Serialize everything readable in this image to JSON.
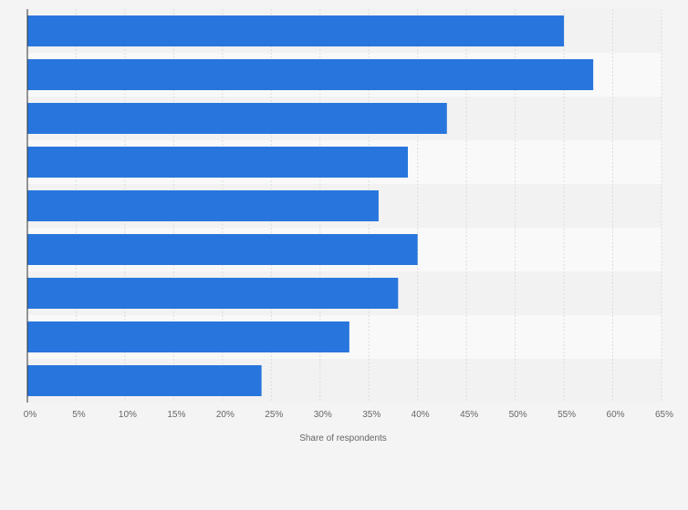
{
  "chart_data": {
    "type": "bar",
    "orientation": "horizontal",
    "categories": [
      "",
      "",
      "",
      "",
      "",
      "",
      "",
      "",
      ""
    ],
    "values": [
      55,
      58,
      43,
      39,
      36,
      40,
      38,
      33,
      24
    ],
    "xlabel": "Share of respondents",
    "ylabel": "",
    "xlim": [
      0,
      65
    ],
    "xticks": [
      "0%",
      "5%",
      "10%",
      "15%",
      "20%",
      "25%",
      "30%",
      "35%",
      "40%",
      "45%",
      "50%",
      "55%",
      "60%",
      "65%"
    ],
    "grid": true,
    "bar_color": "#2876dd",
    "band_colors": [
      "#f2f2f2",
      "#f9f9f9"
    ],
    "gridline_color": "#dcdcdc",
    "background": "#f4f4f4"
  }
}
